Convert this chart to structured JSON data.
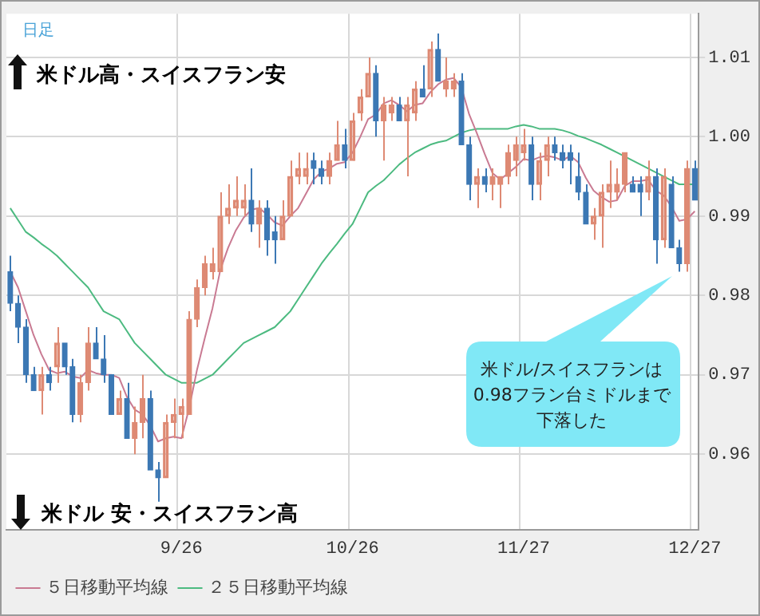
{
  "chart_data": {
    "type": "candlestick",
    "categories": [
      null,
      null,
      null,
      null,
      null,
      null,
      null,
      null,
      null,
      null,
      null,
      null,
      null,
      null,
      null,
      null,
      null,
      null,
      null,
      null,
      null,
      null,
      "9/26",
      null,
      null,
      null,
      null,
      null,
      null,
      null,
      null,
      null,
      null,
      null,
      null,
      null,
      null,
      null,
      null,
      null,
      null,
      null,
      null,
      null,
      "10/26",
      null,
      null,
      null,
      null,
      null,
      null,
      null,
      null,
      null,
      null,
      null,
      null,
      null,
      null,
      null,
      null,
      null,
      null,
      null,
      null,
      null,
      "11/27",
      null,
      null,
      null,
      null,
      null,
      null,
      null,
      null,
      null,
      null,
      null,
      null,
      null,
      null,
      null,
      null,
      null,
      null,
      null,
      null,
      null,
      "12/27"
    ],
    "ohlc": [
      [
        0.983,
        0.985,
        0.978,
        0.979
      ],
      [
        0.979,
        0.98,
        0.974,
        0.976
      ],
      [
        0.976,
        0.977,
        0.969,
        0.97
      ],
      [
        0.97,
        0.971,
        0.968,
        0.968
      ],
      [
        0.968,
        0.971,
        0.965,
        0.97
      ],
      [
        0.97,
        0.971,
        0.968,
        0.969
      ],
      [
        0.971,
        0.976,
        0.969,
        0.974
      ],
      [
        0.974,
        0.974,
        0.97,
        0.971
      ],
      [
        0.971,
        0.972,
        0.964,
        0.965
      ],
      [
        0.965,
        0.97,
        0.964,
        0.969
      ],
      [
        0.969,
        0.976,
        0.968,
        0.974
      ],
      [
        0.974,
        0.976,
        0.972,
        0.972
      ],
      [
        0.972,
        0.975,
        0.969,
        0.97
      ],
      [
        0.97,
        0.97,
        0.965,
        0.965
      ],
      [
        0.965,
        0.968,
        0.965,
        0.967
      ],
      [
        0.967,
        0.969,
        0.962,
        0.962
      ],
      [
        0.962,
        0.966,
        0.96,
        0.964
      ],
      [
        0.964,
        0.97,
        0.962,
        0.967
      ],
      [
        0.967,
        0.968,
        0.958,
        0.958
      ],
      [
        0.958,
        0.959,
        0.954,
        0.957
      ],
      [
        0.957,
        0.965,
        0.957,
        0.964
      ],
      [
        0.964,
        0.967,
        0.962,
        0.965
      ],
      [
        0.965,
        0.967,
        0.962,
        0.966
      ],
      [
        0.965,
        0.978,
        0.965,
        0.977
      ],
      [
        0.977,
        0.982,
        0.976,
        0.981
      ],
      [
        0.981,
        0.985,
        0.98,
        0.984
      ],
      [
        0.983,
        0.986,
        0.982,
        0.984
      ],
      [
        0.983,
        0.993,
        0.983,
        0.99
      ],
      [
        0.99,
        0.994,
        0.989,
        0.991
      ],
      [
        0.991,
        0.995,
        0.99,
        0.992
      ],
      [
        0.991,
        0.994,
        0.99,
        0.992
      ],
      [
        0.992,
        0.996,
        0.988,
        0.989
      ],
      [
        0.989,
        0.992,
        0.986,
        0.991
      ],
      [
        0.991,
        0.992,
        0.985,
        0.987
      ],
      [
        0.988,
        0.99,
        0.984,
        0.987
      ],
      [
        0.987,
        0.992,
        0.987,
        0.99
      ],
      [
        0.99,
        0.997,
        0.99,
        0.995
      ],
      [
        0.995,
        0.998,
        0.994,
        0.996
      ],
      [
        0.995,
        0.998,
        0.994,
        0.996
      ],
      [
        0.997,
        0.998,
        0.994,
        0.996
      ],
      [
        0.996,
        0.997,
        0.994,
        0.995
      ],
      [
        0.995,
        0.998,
        0.994,
        0.997
      ],
      [
        0.997,
        1.002,
        0.997,
        0.999
      ],
      [
        0.999,
        1.001,
        0.996,
        0.997
      ],
      [
        0.997,
        1.003,
        0.997,
        1.002
      ],
      [
        1.003,
        1.006,
        1.002,
        1.005
      ],
      [
        1.005,
        1.01,
        1.005,
        1.008
      ],
      [
        1.008,
        1.009,
        1.0,
        1.002
      ],
      [
        1.002,
        1.005,
        0.997,
        1.004
      ],
      [
        1.003,
        1.005,
        1.002,
        1.004
      ],
      [
        1.004,
        1.005,
        1.002,
        1.002
      ],
      [
        1.002,
        1.005,
        0.995,
        1.004
      ],
      [
        1.003,
        1.007,
        1.002,
        1.006
      ],
      [
        1.006,
        1.009,
        1.005,
        1.005
      ],
      [
        1.006,
        1.012,
        1.005,
        1.011
      ],
      [
        1.011,
        1.013,
        1.007,
        1.007
      ],
      [
        1.006,
        1.01,
        1.005,
        1.007
      ],
      [
        1.006,
        1.008,
        1.005,
        1.007
      ],
      [
        1.007,
        1.008,
        0.999,
        0.999
      ],
      [
        0.999,
        1.0,
        0.992,
        0.994
      ],
      [
        0.994,
        0.996,
        0.991,
        0.995
      ],
      [
        0.995,
        0.996,
        0.993,
        0.994
      ],
      [
        0.994,
        0.996,
        0.992,
        0.995
      ],
      [
        0.994,
        0.995,
        0.991,
        0.995
      ],
      [
        0.995,
        0.999,
        0.994,
        0.998
      ],
      [
        0.997,
        1.0,
        0.995,
        0.999
      ],
      [
        0.998,
        1.001,
        0.997,
        0.999
      ],
      [
        0.999,
        1.0,
        0.992,
        0.994
      ],
      [
        0.994,
        0.998,
        0.992,
        0.997
      ],
      [
        0.997,
        1.0,
        0.995,
        0.999
      ],
      [
        0.999,
        1.0,
        0.997,
        0.998
      ],
      [
        0.998,
        0.999,
        0.996,
        0.997
      ],
      [
        0.998,
        0.999,
        0.994,
        0.997
      ],
      [
        0.995,
        0.998,
        0.992,
        0.993
      ],
      [
        0.993,
        0.994,
        0.989,
        0.989
      ],
      [
        0.989,
        0.991,
        0.987,
        0.99
      ],
      [
        0.99,
        0.994,
        0.986,
        0.993
      ],
      [
        0.993,
        0.997,
        0.991,
        0.994
      ],
      [
        0.993,
        0.996,
        0.992,
        0.994
      ],
      [
        0.994,
        0.998,
        0.993,
        0.998
      ],
      [
        0.994,
        0.995,
        0.993,
        0.993
      ],
      [
        0.994,
        0.995,
        0.99,
        0.993
      ],
      [
        0.993,
        0.997,
        0.992,
        0.995
      ],
      [
        0.995,
        0.996,
        0.984,
        0.987
      ],
      [
        0.987,
        0.996,
        0.986,
        0.995
      ],
      [
        0.994,
        0.995,
        0.986,
        0.986
      ],
      [
        0.986,
        0.987,
        0.983,
        0.984
      ],
      [
        0.984,
        0.997,
        0.983,
        0.996
      ],
      [
        0.996,
        0.997,
        0.992,
        0.992
      ]
    ],
    "colors": [
      "#3c78b4",
      "#3c78b4",
      "#3c78b4",
      "#3c78b4",
      "#de8a74",
      "#3c78b4",
      "#de8a74",
      "#3c78b4",
      "#3c78b4",
      "#de8a74",
      "#de8a74",
      "#3c78b4",
      "#3c78b4",
      "#3c78b4",
      "#de8a74",
      "#3c78b4",
      "#de8a74",
      "#de8a74",
      "#3c78b4",
      "#3c78b4",
      "#de8a74",
      "#de8a74",
      "#de8a74",
      "#de8a74",
      "#de8a74",
      "#de8a74",
      "#de8a74",
      "#de8a74",
      "#de8a74",
      "#de8a74",
      "#de8a74",
      "#3c78b4",
      "#de8a74",
      "#3c78b4",
      "#3c78b4",
      "#de8a74",
      "#de8a74",
      "#de8a74",
      "#de8a74",
      "#3c78b4",
      "#3c78b4",
      "#de8a74",
      "#de8a74",
      "#3c78b4",
      "#de8a74",
      "#de8a74",
      "#de8a74",
      "#3c78b4",
      "#de8a74",
      "#de8a74",
      "#3c78b4",
      "#de8a74",
      "#de8a74",
      "#3c78b4",
      "#de8a74",
      "#3c78b4",
      "#de8a74",
      "#de8a74",
      "#3c78b4",
      "#3c78b4",
      "#de8a74",
      "#3c78b4",
      "#de8a74",
      "#de8a74",
      "#de8a74",
      "#de8a74",
      "#de8a74",
      "#3c78b4",
      "#de8a74",
      "#de8a74",
      "#3c78b4",
      "#3c78b4",
      "#3c78b4",
      "#3c78b4",
      "#3c78b4",
      "#de8a74",
      "#de8a74",
      "#de8a74",
      "#de8a74",
      "#de8a74",
      "#3c78b4",
      "#3c78b4",
      "#de8a74",
      "#3c78b4",
      "#de8a74",
      "#3c78b4",
      "#3c78b4",
      "#de8a74",
      "#3c78b4"
    ],
    "series": [
      {
        "name": "５日移動平均線",
        "type": "line",
        "color": "#c97a92",
        "values": [
          0.983,
          0.981,
          0.978,
          0.975,
          0.9726,
          0.9706,
          0.9702,
          0.9704,
          0.9698,
          0.9696,
          0.9706,
          0.9702,
          0.97,
          0.97,
          0.9696,
          0.9672,
          0.9656,
          0.965,
          0.9636,
          0.9616,
          0.962,
          0.9622,
          0.962,
          0.9658,
          0.9706,
          0.9746,
          0.9784,
          0.9832,
          0.986,
          0.9882,
          0.9898,
          0.9908,
          0.991,
          0.9902,
          0.9892,
          0.9888,
          0.99,
          0.991,
          0.9928,
          0.9946,
          0.9956,
          0.996,
          0.9966,
          0.9968,
          0.998,
          1.0,
          1.0022,
          1.0028,
          1.0042,
          1.0046,
          1.004,
          1.0032,
          1.004,
          1.0042,
          1.0056,
          1.0066,
          1.0072,
          1.0074,
          1.0062,
          1.0028,
          1.0004,
          0.9978,
          0.9954,
          0.9946,
          0.9954,
          0.9962,
          0.9972,
          0.997,
          0.9974,
          0.9976,
          0.9974,
          0.997,
          0.9976,
          0.9968,
          0.9948,
          0.9932,
          0.9924,
          0.9918,
          0.992,
          0.9938,
          0.9944,
          0.9944,
          0.9946,
          0.9932,
          0.9926,
          0.9912,
          0.9894,
          0.9896,
          0.9906
        ]
      },
      {
        "name": "２５日移動平均線",
        "type": "line",
        "color": "#4cba80",
        "values": [
          0.991,
          0.9895,
          0.988,
          0.9873,
          0.9865,
          0.9858,
          0.985,
          0.984,
          0.983,
          0.982,
          0.981,
          0.9795,
          0.978,
          0.9775,
          0.977,
          0.9755,
          0.974,
          0.973,
          0.972,
          0.971,
          0.97,
          0.9695,
          0.969,
          0.969,
          0.969,
          0.9695,
          0.97,
          0.971,
          0.972,
          0.973,
          0.974,
          0.9745,
          0.975,
          0.9755,
          0.976,
          0.977,
          0.978,
          0.9795,
          0.981,
          0.9825,
          0.984,
          0.9853,
          0.9865,
          0.9878,
          0.989,
          0.991,
          0.993,
          0.9938,
          0.9945,
          0.9955,
          0.9965,
          0.9973,
          0.998,
          0.9985,
          0.999,
          0.9993,
          0.9995,
          1.0,
          1.0005,
          1.0008,
          1.001,
          1.001,
          1.001,
          1.001,
          1.001,
          1.0013,
          1.0015,
          1.0013,
          1.001,
          1.001,
          1.001,
          1.0008,
          1.0005,
          1.0001,
          0.9998,
          0.9994,
          0.999,
          0.9985,
          0.998,
          0.9975,
          0.997,
          0.9965,
          0.996,
          0.9955,
          0.995,
          0.9945,
          0.994,
          0.994,
          0.994
        ]
      }
    ],
    "ylim": [
      0.9505,
      1.0155
    ],
    "yticks": [
      0.96,
      0.97,
      0.98,
      0.99,
      {
        "value": 1,
        "label": "1.00"
      },
      1.01
    ],
    "grid": true,
    "legend": "bottom",
    "marker": "none",
    "line_style": "solid",
    "annotations": [
      "日足",
      "米ドル高・スイスフラン安",
      "米ドル 安・スイスフラン高",
      "米ドル/スイスフランは0.98フラン台ミドルまで下落した"
    ]
  }
}
